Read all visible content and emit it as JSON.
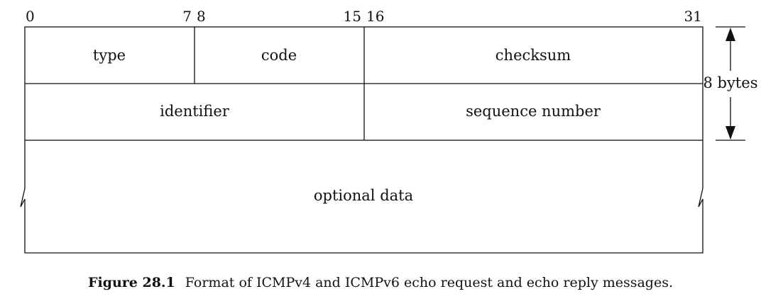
{
  "bit_labels": {
    "b0": "0",
    "b7": "7",
    "b8": "8",
    "b15": "15",
    "b16": "16",
    "b31": "31"
  },
  "fields": {
    "type": "type",
    "code": "code",
    "checksum": "checksum",
    "identifier": "identifier",
    "sequence_number": "sequence number",
    "optional_data": "optional data"
  },
  "size_annotation": "8 bytes",
  "caption": {
    "figure_number": "Figure 28.1",
    "text": "Format of ICMPv4 and ICMPv6 echo request and echo reply messages."
  }
}
